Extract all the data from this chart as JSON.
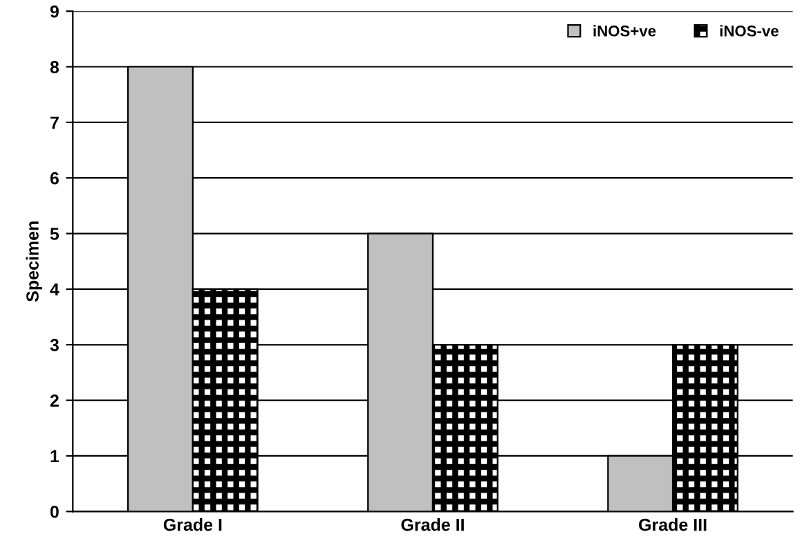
{
  "chart_data": {
    "type": "bar",
    "ylabel": "Specimen",
    "categories": [
      "Grade I",
      "Grade II",
      "Grade III"
    ],
    "series": [
      {
        "name": "iNOS+ve",
        "color": "#c0c0c0",
        "values": [
          8,
          5,
          1
        ]
      },
      {
        "name": "iNOS-ve",
        "color": "#000000",
        "values": [
          4,
          3,
          3
        ]
      }
    ],
    "ylim": [
      0,
      9
    ],
    "yticks": [
      0,
      1,
      2,
      3,
      4,
      5,
      6,
      7,
      8,
      9
    ],
    "grid": "y",
    "legend": "top right"
  }
}
